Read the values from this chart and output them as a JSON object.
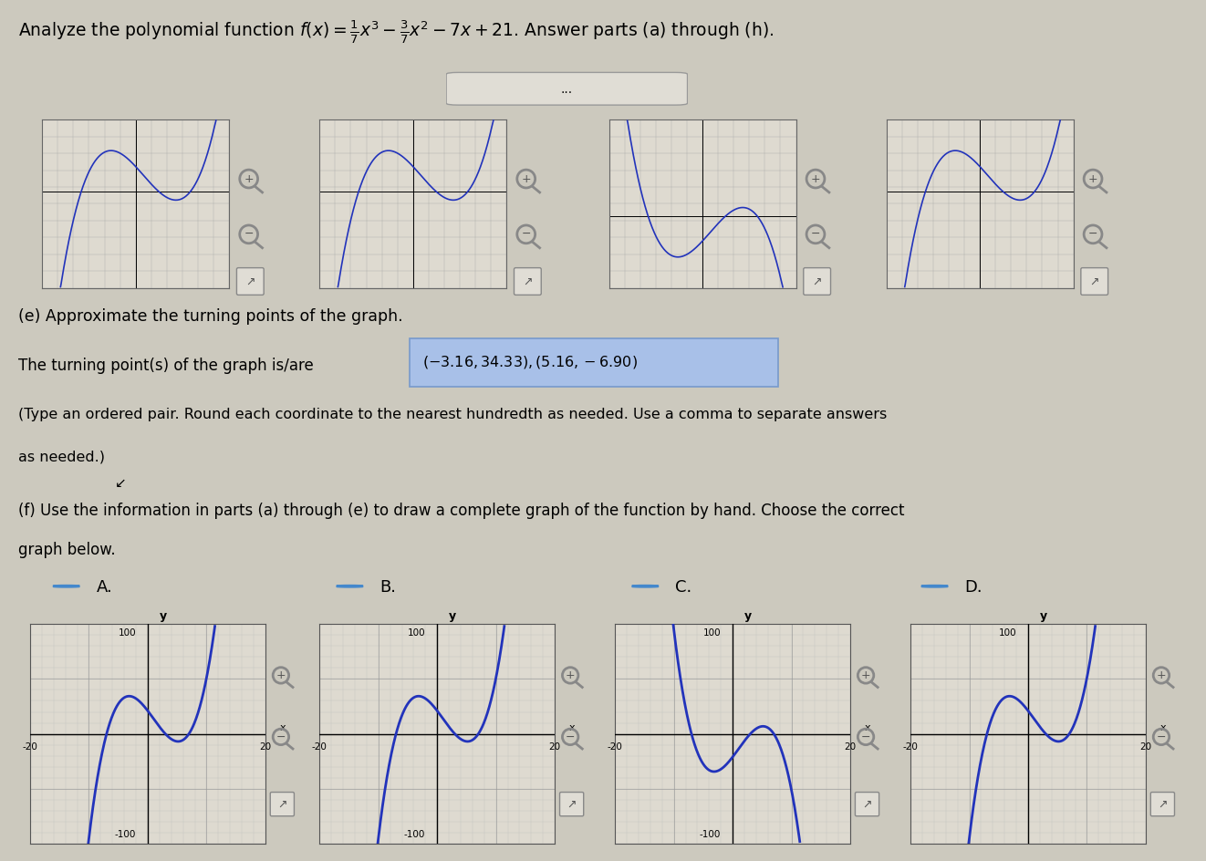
{
  "bg_color": "#ccc9be",
  "panel_color": "#dedad0",
  "grid_fine_color": "#aaaaaa",
  "grid_coarse_color": "#888888",
  "curve_color": "#2233bb",
  "axis_color": "#000000",
  "highlight_box_color": "#a8c0e8",
  "highlight_border_color": "#7799cc",
  "title_line": "Analyze the polynomial function $f(x)=\\frac{1}{7}x^3-\\frac{3}{7}x^2-7x+21$. Answer parts (a) through (h).",
  "part_e_label": "(e) Approximate the turning points of the graph.",
  "turning_intro": "The turning point(s) of the graph is/are",
  "turning_answer": "( − 3.16,34.33),(5.16, − 6.90)",
  "instruction_line1": "(Type an ordered pair. Round each coordinate to the nearest hundredth as needed. Use a comma to separate answers",
  "instruction_line2": "as needed.)",
  "cursor_symbol": "↲",
  "part_f_label": "(f) Use the information in parts (a) through (e) to draw a complete graph of the function by hand. Choose the correct",
  "part_f_label2": "graph below.",
  "radio_labels": [
    "A.",
    "B.",
    "C.",
    "D."
  ],
  "dots_button_text": "...",
  "thumb_xlim": [
    -12,
    12
  ],
  "thumb_ylim": [
    -60,
    60
  ],
  "main_xlim": [
    -20,
    20
  ],
  "main_ylim": [
    -100,
    100
  ]
}
